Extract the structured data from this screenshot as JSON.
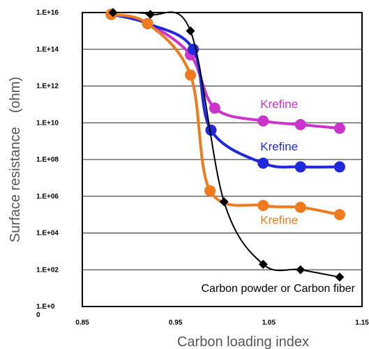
{
  "chart_data": {
    "type": "line",
    "xlabel": "Carbon loading index",
    "ylabel": "Surface resistance　(ohm)",
    "xlim": [
      0.85,
      1.15
    ],
    "ylim_exponent": [
      0,
      16
    ],
    "log_y": true,
    "grid": "horizontal",
    "x_ticks": [
      "0.85",
      "0.95",
      "1.05",
      "1.15"
    ],
    "y_ticks": [
      {
        "exp": 0,
        "label": "1.E+0",
        "sublabel": "0"
      },
      {
        "exp": 2,
        "label": "1.E+02"
      },
      {
        "exp": 4,
        "label": "1.E+04"
      },
      {
        "exp": 6,
        "label": "1.E+06"
      },
      {
        "exp": 8,
        "label": "1.E+08"
      },
      {
        "exp": 10,
        "label": "1.E+10"
      },
      {
        "exp": 12,
        "label": "1.E+12"
      },
      {
        "exp": 14,
        "label": "1.E+14"
      },
      {
        "exp": 16,
        "label": "1.E+16"
      }
    ],
    "series": [
      {
        "name": "Krefine",
        "color": "#cc33cc",
        "marker": "circle",
        "points": [
          [
            0.881,
            15.9
          ],
          [
            0.92,
            15.4
          ],
          [
            0.966,
            13.7
          ],
          [
            0.992,
            10.8
          ],
          [
            1.044,
            10.1
          ],
          [
            1.084,
            9.9
          ],
          [
            1.126,
            9.7
          ]
        ],
        "label_at": [
          1.02,
          10.8
        ]
      },
      {
        "name": "Krefine",
        "color": "#1f28dd",
        "marker": "circle",
        "points": [
          [
            0.881,
            15.9
          ],
          [
            0.92,
            15.4
          ],
          [
            0.969,
            14.0
          ],
          [
            0.988,
            9.6
          ],
          [
            1.044,
            7.8
          ],
          [
            1.084,
            7.6
          ],
          [
            1.126,
            7.6
          ]
        ],
        "label_at": [
          1.02,
          8.5
        ]
      },
      {
        "name": "Krefine",
        "color": "#f07b1e",
        "marker": "circle",
        "points": [
          [
            0.881,
            15.9
          ],
          [
            0.92,
            15.4
          ],
          [
            0.966,
            12.6
          ],
          [
            0.987,
            6.3
          ],
          [
            1.044,
            5.5
          ],
          [
            1.084,
            5.4
          ],
          [
            1.126,
            5.0
          ]
        ],
        "label_at": [
          1.02,
          4.5
        ]
      },
      {
        "name": "Carbon powder or Carbon fiber",
        "color": "#000000",
        "marker": "diamond",
        "points": [
          [
            0.883,
            16.0
          ],
          [
            0.923,
            15.9
          ],
          [
            0.966,
            15.0
          ],
          [
            1.002,
            5.7
          ],
          [
            1.044,
            2.3
          ],
          [
            1.084,
            2.0
          ],
          [
            1.126,
            1.6
          ]
        ],
        "label_at": [
          0.99,
          0.8
        ]
      }
    ]
  }
}
